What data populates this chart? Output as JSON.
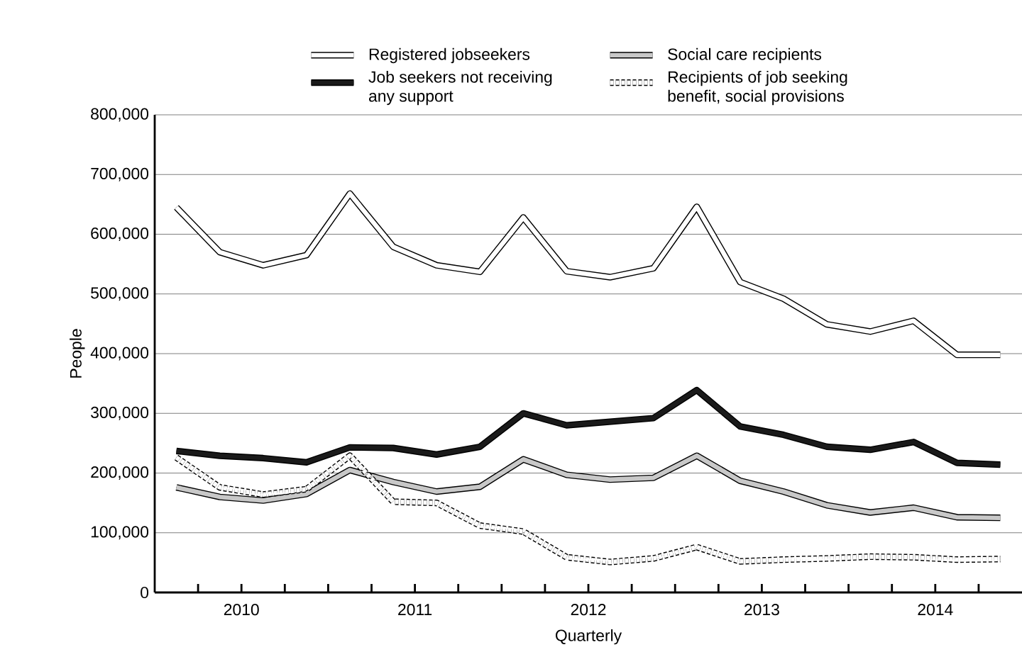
{
  "chart_data": {
    "type": "line",
    "xlabel": "Quarterly",
    "ylabel": "People",
    "x": [
      2010.125,
      2010.375,
      2010.625,
      2010.875,
      2011.125,
      2011.375,
      2011.625,
      2011.875,
      2012.125,
      2012.375,
      2012.625,
      2012.875,
      2013.125,
      2013.375,
      2013.625,
      2013.875,
      2014.125,
      2014.375,
      2014.625,
      2014.875
    ],
    "xlim": [
      2010,
      2015
    ],
    "xticks": [
      {
        "value": 2010.25,
        "label": null
      },
      {
        "value": 2010.5,
        "label": "2010"
      },
      {
        "value": 2010.75,
        "label": null
      },
      {
        "value": 2011,
        "label": null
      },
      {
        "value": 2011.25,
        "label": null
      },
      {
        "value": 2011.5,
        "label": "2011"
      },
      {
        "value": 2011.75,
        "label": null
      },
      {
        "value": 2012,
        "label": null
      },
      {
        "value": 2012.25,
        "label": null
      },
      {
        "value": 2012.5,
        "label": "2012"
      },
      {
        "value": 2012.75,
        "label": null
      },
      {
        "value": 2013,
        "label": null
      },
      {
        "value": 2013.25,
        "label": null
      },
      {
        "value": 2013.5,
        "label": "2013"
      },
      {
        "value": 2013.75,
        "label": null
      },
      {
        "value": 2014,
        "label": null
      },
      {
        "value": 2014.25,
        "label": null
      },
      {
        "value": 2014.5,
        "label": "2014"
      },
      {
        "value": 2014.75,
        "label": null
      }
    ],
    "ylim": [
      0,
      800000
    ],
    "yticks": [
      {
        "value": 0,
        "label": "0"
      },
      {
        "value": 100000,
        "label": "100,000"
      },
      {
        "value": 200000,
        "label": "200,000"
      },
      {
        "value": 300000,
        "label": "300,000"
      },
      {
        "value": 400000,
        "label": "400,000"
      },
      {
        "value": 500000,
        "label": "500,000"
      },
      {
        "value": 600000,
        "label": "600,000"
      },
      {
        "value": 700000,
        "label": "700,000"
      },
      {
        "value": 800000,
        "label": "800,000"
      }
    ],
    "grid": "y",
    "legend": "top",
    "series": [
      {
        "name": "Registered jobseekers",
        "color": "#ffffff",
        "values": [
          645000,
          570000,
          548000,
          565000,
          668000,
          579000,
          548000,
          537000,
          628000,
          538000,
          528000,
          543000,
          646000,
          520000,
          492000,
          449000,
          437000,
          455000,
          398000,
          398000
        ]
      },
      {
        "name": "Social care recipients",
        "color": "#c8c8c8",
        "values": [
          176000,
          160000,
          154000,
          165000,
          205000,
          185000,
          169000,
          177000,
          223000,
          197000,
          189000,
          192000,
          229000,
          187000,
          169000,
          146000,
          134000,
          142000,
          126000,
          125000
        ]
      },
      {
        "name": "Job seekers not receiving any support",
        "color": "#1a1a1a",
        "values": [
          237000,
          229000,
          225000,
          218000,
          243000,
          242000,
          231000,
          244000,
          300000,
          280000,
          286000,
          292000,
          339000,
          278000,
          264000,
          244000,
          239000,
          252000,
          217000,
          214000
        ]
      },
      {
        "name": "Recipients of job seeking benefit, social provisions",
        "color": "#ffffff",
        "line_style": "dashed",
        "values": [
          226000,
          176000,
          164000,
          173000,
          229000,
          152000,
          150000,
          112000,
          102000,
          59000,
          51000,
          57000,
          76000,
          52000,
          55000,
          57000,
          60000,
          59000,
          55000,
          56000
        ]
      }
    ]
  }
}
